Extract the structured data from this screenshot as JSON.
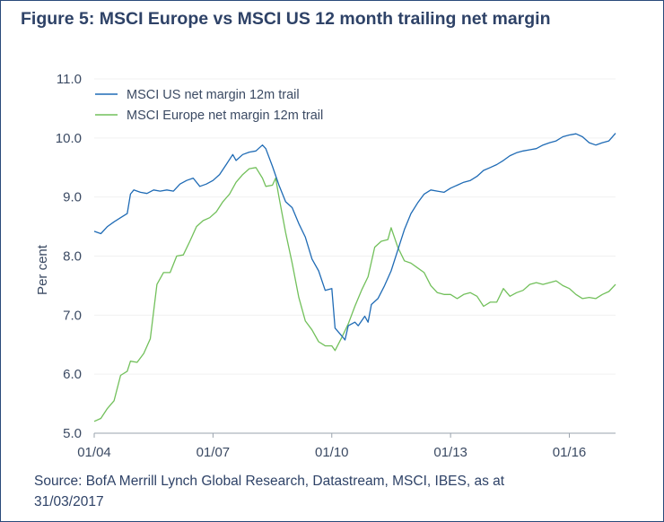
{
  "title": "Figure 5: MSCI Europe vs MSCI US 12 month trailing net margin",
  "source": "Source: BofA Merrill Lynch Global Research, Datastream, MSCI, IBES, as at 31/03/2017",
  "colors": {
    "title": "#2e4267",
    "us": "#1f6bb5",
    "europe": "#72c05b",
    "grid": "#f0f0f0",
    "frame": "#2b4a7a"
  },
  "chart_data": {
    "type": "line",
    "title": "Figure 5: MSCI Europe vs MSCI US 12 month trailing net margin",
    "xlabel": "",
    "ylabel": "Per cent",
    "ylim": [
      5.0,
      11.0
    ],
    "yticks": [
      "11.0",
      "10.0",
      "9.0",
      "8.0",
      "7.0",
      "6.0",
      "5.0"
    ],
    "xticks": [
      "01/04",
      "01/07",
      "01/10",
      "01/13",
      "01/16"
    ],
    "x_start": "01/04",
    "x_end": "03/17",
    "grid": true,
    "legend_position": "top-left",
    "series": [
      {
        "name": "MSCI US net margin 12m trail",
        "points": [
          [
            "01/04",
            8.42
          ],
          [
            "03/04",
            8.38
          ],
          [
            "05/04",
            8.5
          ],
          [
            "07/04",
            8.58
          ],
          [
            "09/04",
            8.65
          ],
          [
            "11/04",
            8.72
          ],
          [
            "12/04",
            9.05
          ],
          [
            "01/05",
            9.12
          ],
          [
            "03/05",
            9.08
          ],
          [
            "05/05",
            9.06
          ],
          [
            "07/05",
            9.12
          ],
          [
            "09/05",
            9.1
          ],
          [
            "11/05",
            9.12
          ],
          [
            "01/06",
            9.1
          ],
          [
            "03/06",
            9.22
          ],
          [
            "05/06",
            9.28
          ],
          [
            "07/06",
            9.32
          ],
          [
            "09/06",
            9.18
          ],
          [
            "11/06",
            9.22
          ],
          [
            "01/07",
            9.28
          ],
          [
            "03/07",
            9.38
          ],
          [
            "05/07",
            9.55
          ],
          [
            "07/07",
            9.72
          ],
          [
            "08/07",
            9.62
          ],
          [
            "10/07",
            9.72
          ],
          [
            "12/07",
            9.76
          ],
          [
            "02/08",
            9.78
          ],
          [
            "04/08",
            9.88
          ],
          [
            "05/08",
            9.82
          ],
          [
            "07/08",
            9.52
          ],
          [
            "09/08",
            9.2
          ],
          [
            "11/08",
            8.92
          ],
          [
            "01/09",
            8.82
          ],
          [
            "03/09",
            8.55
          ],
          [
            "05/09",
            8.32
          ],
          [
            "07/09",
            7.95
          ],
          [
            "09/09",
            7.75
          ],
          [
            "11/09",
            7.42
          ],
          [
            "01/10",
            7.45
          ],
          [
            "02/10",
            6.78
          ],
          [
            "04/10",
            6.65
          ],
          [
            "05/10",
            6.58
          ],
          [
            "06/10",
            6.82
          ],
          [
            "08/10",
            6.88
          ],
          [
            "09/10",
            6.82
          ],
          [
            "11/10",
            6.98
          ],
          [
            "12/10",
            6.88
          ],
          [
            "01/11",
            7.18
          ],
          [
            "03/11",
            7.28
          ],
          [
            "05/11",
            7.5
          ],
          [
            "07/11",
            7.75
          ],
          [
            "09/11",
            8.1
          ],
          [
            "11/11",
            8.45
          ],
          [
            "01/12",
            8.72
          ],
          [
            "03/12",
            8.9
          ],
          [
            "05/12",
            9.05
          ],
          [
            "07/12",
            9.12
          ],
          [
            "09/12",
            9.1
          ],
          [
            "11/12",
            9.08
          ],
          [
            "01/13",
            9.15
          ],
          [
            "03/13",
            9.2
          ],
          [
            "05/13",
            9.25
          ],
          [
            "07/13",
            9.28
          ],
          [
            "09/13",
            9.35
          ],
          [
            "11/13",
            9.45
          ],
          [
            "01/14",
            9.5
          ],
          [
            "03/14",
            9.55
          ],
          [
            "05/14",
            9.62
          ],
          [
            "07/14",
            9.7
          ],
          [
            "09/14",
            9.75
          ],
          [
            "11/14",
            9.78
          ],
          [
            "01/15",
            9.8
          ],
          [
            "03/15",
            9.82
          ],
          [
            "05/15",
            9.88
          ],
          [
            "07/15",
            9.92
          ],
          [
            "09/15",
            9.95
          ],
          [
            "11/15",
            10.02
          ],
          [
            "01/16",
            10.05
          ],
          [
            "03/16",
            10.07
          ],
          [
            "05/16",
            10.02
          ],
          [
            "07/16",
            9.92
          ],
          [
            "09/16",
            9.88
          ],
          [
            "11/16",
            9.92
          ],
          [
            "01/17",
            9.95
          ],
          [
            "03/17",
            10.08
          ]
        ]
      },
      {
        "name": "MSCI Europe net margin 12m trail",
        "points": [
          [
            "01/04",
            5.2
          ],
          [
            "03/04",
            5.25
          ],
          [
            "05/04",
            5.42
          ],
          [
            "07/04",
            5.55
          ],
          [
            "09/04",
            5.98
          ],
          [
            "11/04",
            6.05
          ],
          [
            "12/04",
            6.22
          ],
          [
            "02/05",
            6.2
          ],
          [
            "04/05",
            6.35
          ],
          [
            "06/05",
            6.6
          ],
          [
            "08/05",
            7.52
          ],
          [
            "10/05",
            7.72
          ],
          [
            "12/05",
            7.72
          ],
          [
            "02/06",
            8.0
          ],
          [
            "04/06",
            8.02
          ],
          [
            "06/06",
            8.25
          ],
          [
            "08/06",
            8.5
          ],
          [
            "10/06",
            8.6
          ],
          [
            "12/06",
            8.65
          ],
          [
            "02/07",
            8.75
          ],
          [
            "04/07",
            8.92
          ],
          [
            "06/07",
            9.05
          ],
          [
            "08/07",
            9.25
          ],
          [
            "10/07",
            9.38
          ],
          [
            "12/07",
            9.48
          ],
          [
            "02/08",
            9.5
          ],
          [
            "04/08",
            9.32
          ],
          [
            "05/08",
            9.18
          ],
          [
            "07/08",
            9.2
          ],
          [
            "08/08",
            9.32
          ],
          [
            "09/08",
            9.0
          ],
          [
            "11/08",
            8.4
          ],
          [
            "01/09",
            7.88
          ],
          [
            "03/09",
            7.3
          ],
          [
            "05/09",
            6.9
          ],
          [
            "07/09",
            6.75
          ],
          [
            "09/09",
            6.55
          ],
          [
            "11/09",
            6.48
          ],
          [
            "01/10",
            6.48
          ],
          [
            "02/10",
            6.4
          ],
          [
            "04/10",
            6.62
          ],
          [
            "06/10",
            6.85
          ],
          [
            "08/10",
            7.15
          ],
          [
            "10/10",
            7.42
          ],
          [
            "12/10",
            7.65
          ],
          [
            "02/11",
            8.15
          ],
          [
            "04/11",
            8.25
          ],
          [
            "06/11",
            8.28
          ],
          [
            "07/11",
            8.48
          ],
          [
            "09/11",
            8.15
          ],
          [
            "11/11",
            7.92
          ],
          [
            "01/12",
            7.88
          ],
          [
            "03/12",
            7.8
          ],
          [
            "05/12",
            7.72
          ],
          [
            "07/12",
            7.5
          ],
          [
            "09/12",
            7.38
          ],
          [
            "11/12",
            7.35
          ],
          [
            "01/13",
            7.35
          ],
          [
            "03/13",
            7.28
          ],
          [
            "05/13",
            7.35
          ],
          [
            "07/13",
            7.38
          ],
          [
            "09/13",
            7.32
          ],
          [
            "11/13",
            7.15
          ],
          [
            "01/14",
            7.22
          ],
          [
            "03/14",
            7.22
          ],
          [
            "05/14",
            7.45
          ],
          [
            "07/14",
            7.32
          ],
          [
            "09/14",
            7.38
          ],
          [
            "11/14",
            7.42
          ],
          [
            "01/15",
            7.52
          ],
          [
            "03/15",
            7.55
          ],
          [
            "05/15",
            7.52
          ],
          [
            "07/15",
            7.55
          ],
          [
            "09/15",
            7.58
          ],
          [
            "11/15",
            7.5
          ],
          [
            "01/16",
            7.45
          ],
          [
            "03/16",
            7.35
          ],
          [
            "05/16",
            7.28
          ],
          [
            "07/16",
            7.3
          ],
          [
            "09/16",
            7.28
          ],
          [
            "11/16",
            7.35
          ],
          [
            "01/17",
            7.4
          ],
          [
            "03/17",
            7.52
          ]
        ]
      }
    ]
  }
}
